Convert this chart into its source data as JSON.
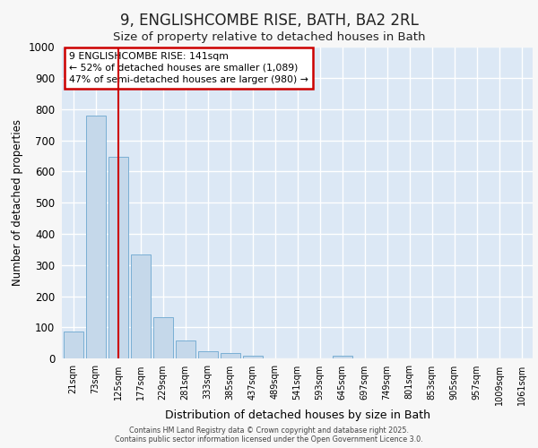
{
  "title_line1": "9, ENGLISHCOMBE RISE, BATH, BA2 2RL",
  "title_line2": "Size of property relative to detached houses in Bath",
  "xlabel": "Distribution of detached houses by size in Bath",
  "ylabel": "Number of detached properties",
  "bar_labels": [
    "21sqm",
    "73sqm",
    "125sqm",
    "177sqm",
    "229sqm",
    "281sqm",
    "333sqm",
    "385sqm",
    "437sqm",
    "489sqm",
    "541sqm",
    "593sqm",
    "645sqm",
    "697sqm",
    "749sqm",
    "801sqm",
    "853sqm",
    "905sqm",
    "957sqm",
    "1009sqm",
    "1061sqm"
  ],
  "bar_values": [
    85,
    780,
    648,
    335,
    132,
    58,
    22,
    18,
    8,
    0,
    0,
    0,
    8,
    0,
    0,
    0,
    0,
    0,
    0,
    0,
    0
  ],
  "bar_color": "#c5d8ea",
  "bar_edgecolor": "#7aafd4",
  "plot_bg_color": "#dce8f5",
  "fig_bg_color": "#f7f7f7",
  "grid_color": "#ffffff",
  "vline_x": 2.0,
  "vline_color": "#cc0000",
  "ylim": [
    0,
    1000
  ],
  "yticks": [
    0,
    100,
    200,
    300,
    400,
    500,
    600,
    700,
    800,
    900,
    1000
  ],
  "annotation_text": "9 ENGLISHCOMBE RISE: 141sqm\n← 52% of detached houses are smaller (1,089)\n47% of semi-detached houses are larger (980) →",
  "annotation_box_facecolor": "#ffffff",
  "annotation_box_edgecolor": "#cc0000",
  "footer_line1": "Contains HM Land Registry data © Crown copyright and database right 2025.",
  "footer_line2": "Contains public sector information licensed under the Open Government Licence 3.0."
}
